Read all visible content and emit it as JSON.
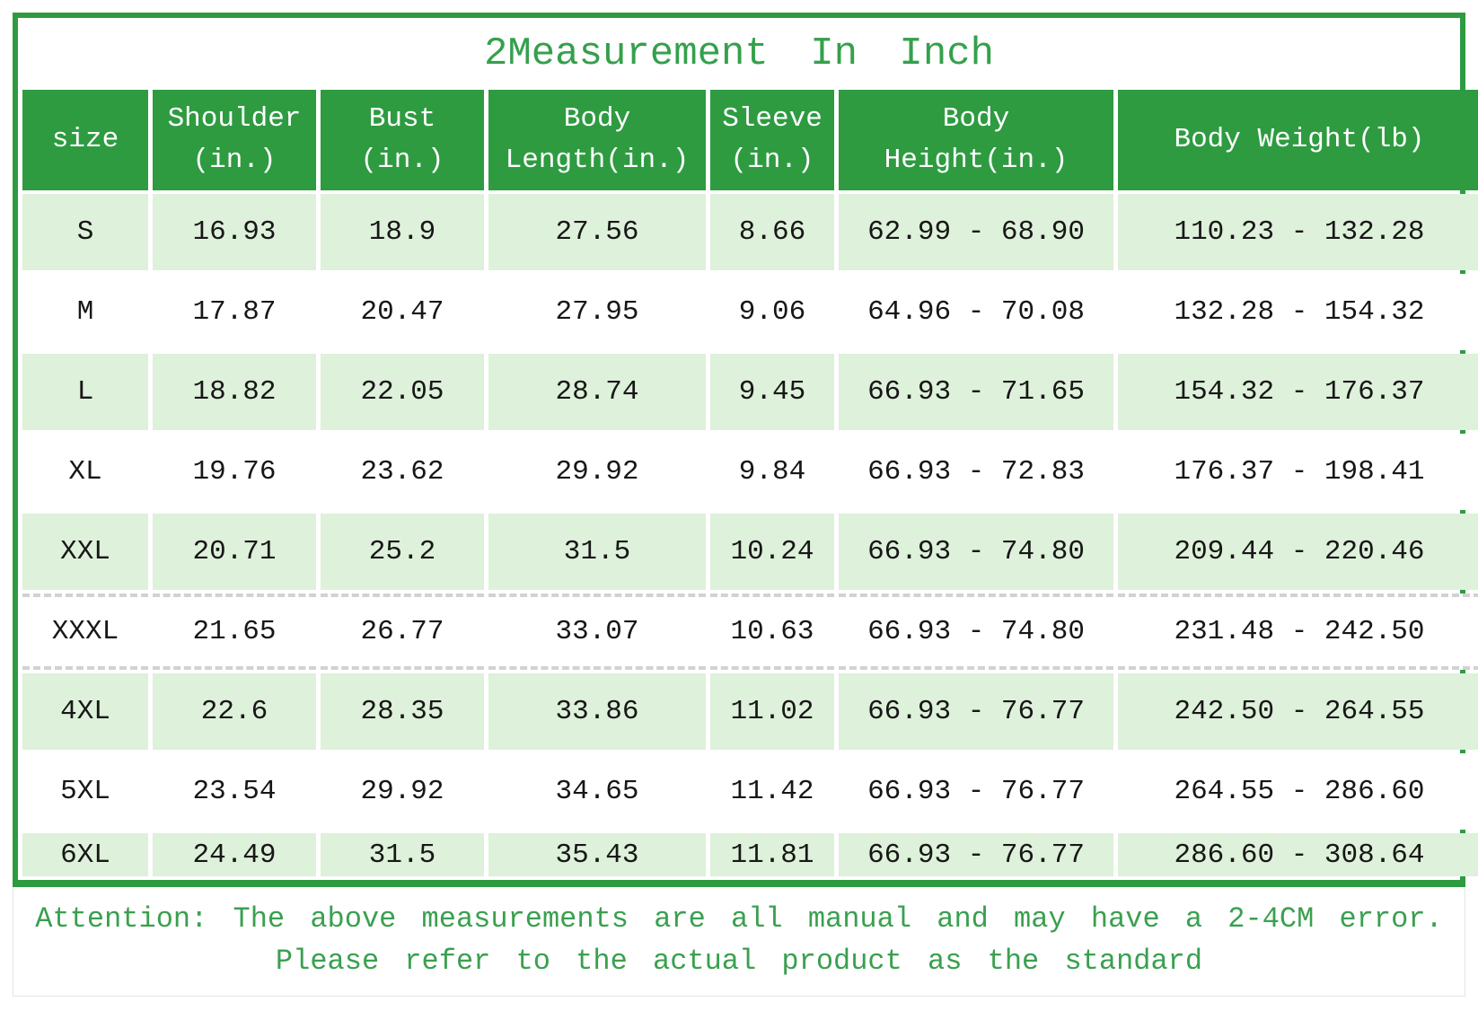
{
  "title": "2Measurement In Inch",
  "colors": {
    "header_green": "#2e9b41",
    "frame_green": "#2e9b41",
    "row_light_green": "#def1da",
    "title_green": "#35a04c",
    "attention_green": "#3aa04f",
    "data_text": "#171717"
  },
  "chart_data": {
    "type": "table",
    "title": "2Measurement In Inch",
    "columns": [
      "size",
      "Shoulder\n(in.)",
      "Bust\n(in.)",
      "Body\nLength(in.)",
      "Sleeve\n(in.)",
      "Body\nHeight(in.)",
      "Body Weight(lb)"
    ],
    "rows": [
      [
        "S",
        "16.93",
        "18.9",
        "27.56",
        "8.66",
        "62.99 - 68.90",
        "110.23 - 132.28"
      ],
      [
        "M",
        "17.87",
        "20.47",
        "27.95",
        "9.06",
        "64.96 - 70.08",
        "132.28 - 154.32"
      ],
      [
        "L",
        "18.82",
        "22.05",
        "28.74",
        "9.45",
        "66.93 - 71.65",
        "154.32 - 176.37"
      ],
      [
        "XL",
        "19.76",
        "23.62",
        "29.92",
        "9.84",
        "66.93 - 72.83",
        "176.37 - 198.41"
      ],
      [
        "XXL",
        "20.71",
        "25.2",
        "31.5",
        "10.24",
        "66.93 - 74.80",
        "209.44 - 220.46"
      ],
      [
        "XXXL",
        "21.65",
        "26.77",
        "33.07",
        "10.63",
        "66.93 - 74.80",
        "231.48 - 242.50"
      ],
      [
        "4XL",
        "22.6",
        "28.35",
        "33.86",
        "11.02",
        "66.93 - 76.77",
        "242.50 - 264.55"
      ],
      [
        "5XL",
        "23.54",
        "29.92",
        "34.65",
        "11.42",
        "66.93 - 76.77",
        "264.55 - 286.60"
      ],
      [
        "6XL",
        "24.49",
        "31.5",
        "35.43",
        "11.81",
        "66.93 - 76.77",
        "286.60 - 308.64"
      ]
    ],
    "layout": {
      "zebra_start": "light-green",
      "header_style": "green-solid",
      "grid": "cell-spacing-white"
    }
  },
  "attention": {
    "line1": "Attention: The above measurements are all manual and may have a 2-4CM error.",
    "line2": "Please refer to the actual product as the standard"
  }
}
